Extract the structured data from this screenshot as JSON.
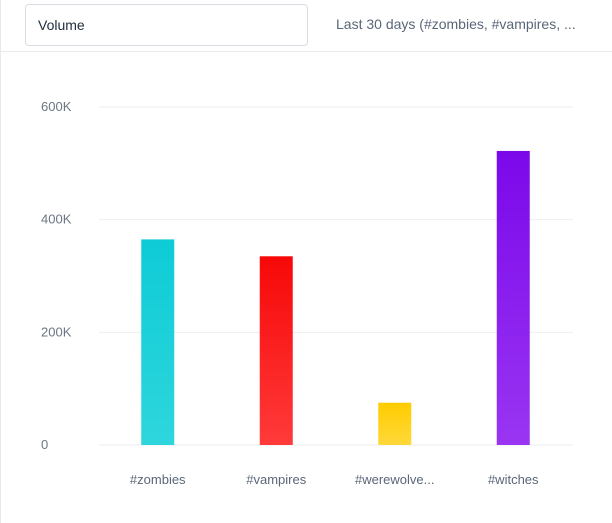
{
  "header": {
    "metric_label": "Volume",
    "filter_summary": "Last 30 days (#zombies, #vampires, ..."
  },
  "chart_data": {
    "type": "bar",
    "categories": [
      "#zombies",
      "#vampires",
      "#werewolve...",
      "#witches"
    ],
    "values": [
      365000,
      335000,
      75000,
      522000
    ],
    "colors": [
      [
        "#0ecbd6",
        "#2ed6dc"
      ],
      [
        "#f70808",
        "#ff3a3a"
      ],
      [
        "#ffcc00",
        "#ffd83a"
      ],
      [
        "#7b08ea",
        "#9a35f2"
      ]
    ],
    "ylim": [
      0,
      600000
    ],
    "yticks": [
      0,
      200000,
      400000,
      600000
    ],
    "ytick_labels": [
      "0",
      "200K",
      "400K",
      "600K"
    ],
    "grid": true,
    "title": "",
    "xlabel": "",
    "ylabel": ""
  }
}
